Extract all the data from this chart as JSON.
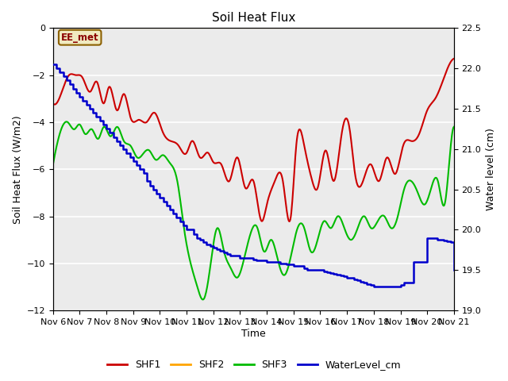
{
  "title": "Soil Heat Flux",
  "xlabel": "Time",
  "ylabel_left": "Soil Heat Flux (W/m2)",
  "ylabel_right": "Water level (cm)",
  "ylim_left": [
    -12,
    0
  ],
  "ylim_right": [
    19.0,
    22.5
  ],
  "yticks_left": [
    0,
    -2,
    -4,
    -6,
    -8,
    -10,
    -12
  ],
  "yticks_right": [
    19.0,
    19.5,
    20.0,
    20.5,
    21.0,
    21.5,
    22.0,
    22.5
  ],
  "xtick_labels": [
    "Nov 6",
    "Nov 7",
    "Nov 8",
    "Nov 9",
    "Nov 10",
    "Nov 11",
    "Nov 12",
    "Nov 13",
    "Nov 14",
    "Nov 15",
    "Nov 16",
    "Nov 17",
    "Nov 18",
    "Nov 19",
    "Nov 20",
    "Nov 21"
  ],
  "annotation_label": "EE_met",
  "background_color": "#EBEBEB",
  "colors": {
    "SHF1": "#CC0000",
    "SHF2": "#FFA500",
    "SHF3": "#00BB00",
    "WaterLevel_cm": "#0000CC"
  },
  "SHF1_x": [
    0.0,
    0.3,
    0.6,
    0.85,
    1.1,
    1.4,
    1.65,
    1.9,
    2.1,
    2.4,
    2.65,
    2.9,
    3.2,
    3.5,
    3.8,
    4.1,
    4.4,
    4.7,
    5.0,
    5.2,
    5.5,
    5.8,
    6.0,
    6.3,
    6.6,
    6.9,
    7.2,
    7.5,
    7.8,
    8.0,
    8.3,
    8.6,
    8.9,
    9.1,
    9.4,
    9.7,
    9.9,
    10.2,
    10.5,
    10.8,
    11.1,
    11.3,
    11.6,
    11.9,
    12.2,
    12.5,
    12.8,
    13.1,
    13.4,
    13.7,
    14.0,
    14.3,
    14.6,
    14.85,
    15.0
  ],
  "SHF1_y": [
    -3.2,
    -2.8,
    -2.0,
    -2.0,
    -2.1,
    -2.7,
    -2.3,
    -3.2,
    -2.5,
    -3.5,
    -2.8,
    -3.8,
    -3.9,
    -4.0,
    -3.6,
    -4.4,
    -4.8,
    -5.0,
    -5.3,
    -4.8,
    -5.5,
    -5.3,
    -5.7,
    -5.8,
    -6.5,
    -5.5,
    -6.8,
    -6.5,
    -8.2,
    -7.5,
    -6.5,
    -6.5,
    -8.0,
    -5.0,
    -5.0,
    -6.5,
    -6.8,
    -5.2,
    -6.5,
    -4.5,
    -4.3,
    -6.2,
    -6.5,
    -5.8,
    -6.5,
    -5.5,
    -6.2,
    -5.0,
    -4.8,
    -4.5,
    -3.5,
    -3.0,
    -2.2,
    -1.5,
    -1.3
  ],
  "SHF3_x": [
    0.0,
    0.25,
    0.55,
    0.8,
    1.0,
    1.2,
    1.45,
    1.7,
    1.9,
    2.15,
    2.4,
    2.65,
    2.9,
    3.15,
    3.4,
    3.6,
    3.85,
    4.1,
    4.35,
    4.65,
    4.9,
    5.15,
    5.4,
    5.65,
    5.9,
    6.15,
    6.4,
    6.65,
    6.9,
    7.15,
    7.4,
    7.65,
    7.9,
    8.15,
    8.4,
    8.65,
    8.9,
    9.15,
    9.4,
    9.65,
    9.9,
    10.15,
    10.4,
    10.65,
    10.9,
    11.15,
    11.4,
    11.65,
    11.9,
    12.15,
    12.4,
    12.65,
    12.9,
    13.15,
    13.4,
    13.65,
    13.9,
    14.15,
    14.4,
    14.65,
    14.9,
    15.0
  ],
  "SHF3_y": [
    -5.8,
    -4.5,
    -4.0,
    -4.3,
    -4.1,
    -4.5,
    -4.3,
    -4.7,
    -4.2,
    -4.6,
    -4.2,
    -4.8,
    -5.0,
    -5.5,
    -5.3,
    -5.2,
    -5.6,
    -5.4,
    -5.7,
    -6.5,
    -8.5,
    -10.0,
    -11.0,
    -11.5,
    -10.0,
    -8.5,
    -9.5,
    -10.2,
    -10.6,
    -9.8,
    -8.7,
    -8.5,
    -9.5,
    -9.0,
    -9.8,
    -10.5,
    -9.7,
    -8.5,
    -8.5,
    -9.5,
    -9.0,
    -8.2,
    -8.5,
    -8.0,
    -8.5,
    -9.0,
    -8.5,
    -8.0,
    -8.5,
    -8.2,
    -8.0,
    -8.5,
    -8.0,
    -6.8,
    -6.5,
    -7.0,
    -7.5,
    -6.8,
    -6.5,
    -7.5,
    -4.8,
    -4.2
  ],
  "WaterLevel_x": [
    0.0,
    0.12,
    0.25,
    0.38,
    0.5,
    0.62,
    0.75,
    0.88,
    1.0,
    1.12,
    1.25,
    1.38,
    1.5,
    1.62,
    1.75,
    1.88,
    2.0,
    2.12,
    2.25,
    2.38,
    2.5,
    2.62,
    2.75,
    2.88,
    3.0,
    3.12,
    3.25,
    3.38,
    3.5,
    3.62,
    3.75,
    3.88,
    4.0,
    4.12,
    4.25,
    4.38,
    4.5,
    4.62,
    4.75,
    4.88,
    5.0,
    5.12,
    5.25,
    5.38,
    5.5,
    5.62,
    5.75,
    5.88,
    6.0,
    6.12,
    6.25,
    6.38,
    6.5,
    6.62,
    6.75,
    6.88,
    7.0,
    7.12,
    7.25,
    7.38,
    7.5,
    7.62,
    7.75,
    7.88,
    8.0,
    8.12,
    8.25,
    8.38,
    8.5,
    8.62,
    8.75,
    8.88,
    9.0,
    9.12,
    9.25,
    9.38,
    9.5,
    9.62,
    9.75,
    9.88,
    10.0,
    10.12,
    10.25,
    10.38,
    10.5,
    10.62,
    10.75,
    10.88,
    11.0,
    11.12,
    11.25,
    11.38,
    11.5,
    11.62,
    11.75,
    11.88,
    12.0,
    12.12,
    12.25,
    12.38,
    12.5,
    12.62,
    12.75,
    12.88,
    13.0,
    13.12,
    13.25,
    13.38,
    13.5,
    13.62,
    13.75,
    13.88,
    14.0,
    14.12,
    14.25,
    14.38,
    14.5,
    14.62,
    14.75,
    14.88,
    15.0
  ],
  "WaterLevel_y": [
    22.05,
    22.0,
    21.95,
    21.9,
    21.85,
    21.8,
    21.75,
    21.7,
    21.65,
    21.6,
    21.55,
    21.5,
    21.45,
    21.4,
    21.35,
    21.3,
    21.25,
    21.2,
    21.15,
    21.1,
    21.05,
    21.0,
    20.95,
    20.9,
    20.85,
    20.8,
    20.75,
    20.7,
    20.6,
    20.55,
    20.5,
    20.45,
    20.4,
    20.35,
    20.3,
    20.25,
    20.2,
    20.15,
    20.1,
    20.05,
    20.0,
    20.0,
    19.95,
    19.9,
    19.88,
    19.85,
    19.82,
    19.8,
    19.78,
    19.76,
    19.74,
    19.72,
    19.7,
    19.68,
    19.68,
    19.68,
    19.65,
    19.65,
    19.65,
    19.65,
    19.63,
    19.62,
    19.62,
    19.62,
    19.6,
    19.6,
    19.6,
    19.6,
    19.58,
    19.58,
    19.57,
    19.57,
    19.55,
    19.55,
    19.55,
    19.52,
    19.5,
    19.5,
    19.5,
    19.5,
    19.5,
    19.48,
    19.47,
    19.46,
    19.45,
    19.44,
    19.43,
    19.42,
    19.4,
    19.4,
    19.38,
    19.37,
    19.36,
    19.35,
    19.33,
    19.32,
    19.3,
    19.3,
    19.3,
    19.3,
    19.3,
    19.3,
    19.3,
    19.3,
    19.32,
    19.35,
    19.35,
    19.35,
    19.6,
    19.6,
    19.6,
    19.6,
    19.9,
    19.9,
    19.9,
    19.88,
    19.88,
    19.87,
    19.86,
    19.85,
    19.5
  ]
}
